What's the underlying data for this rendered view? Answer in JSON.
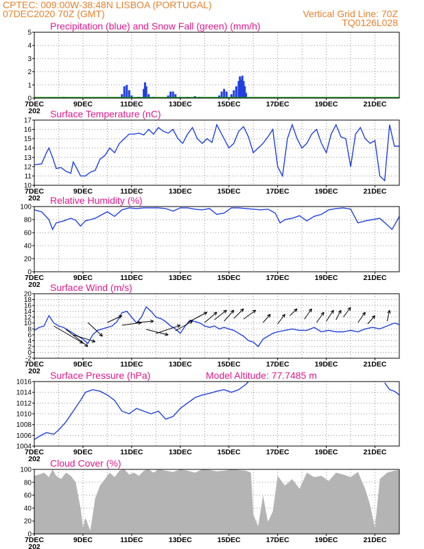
{
  "header": {
    "line1_left": "CPTEC:   009:00W-38:48N  LISBOA (PORTUGAL)",
    "line2_left": "07DEC2020 70Z (GMT)",
    "line2_right": "Vertical Grid Line: 70Z",
    "line3_right": "TQ0126L028"
  },
  "colors": {
    "header": "#e8802a",
    "title": "#e0188a",
    "line": "#1f3fe0",
    "precip": "#1f3fe0",
    "snow": "#1a9a1a",
    "cloud": "#b4b4b4"
  },
  "x_axis": {
    "ticks": [
      "7DEC",
      "9DEC",
      "11DEC",
      "13DEC",
      "15DEC",
      "17DEC",
      "19DEC",
      "21DEC"
    ],
    "clipped_year_label": "202"
  },
  "chart_data": [
    {
      "type": "bar",
      "title": "Precipitation (blue) and Snow Fall (green) (mm/h)",
      "ylim": [
        0,
        5
      ],
      "yticks": [
        "0",
        "1",
        "2",
        "3",
        "4",
        "5"
      ],
      "x_range_days": [
        7,
        22
      ],
      "series": [
        {
          "name": "Precipitation",
          "color": "#1f3fe0",
          "points": [
            [
              7.8,
              0.05
            ],
            [
              8.0,
              0.08
            ],
            [
              8.2,
              0.1
            ],
            [
              8.4,
              0.06
            ],
            [
              9.6,
              0.05
            ],
            [
              10.6,
              0.3
            ],
            [
              10.7,
              0.9
            ],
            [
              10.8,
              1.0
            ],
            [
              10.9,
              0.6
            ],
            [
              11.0,
              0.2
            ],
            [
              11.3,
              0.1
            ],
            [
              11.5,
              0.7
            ],
            [
              11.55,
              1.2
            ],
            [
              11.6,
              0.9
            ],
            [
              11.7,
              0.3
            ],
            [
              11.9,
              0.1
            ],
            [
              12.5,
              0.2
            ],
            [
              12.6,
              0.5
            ],
            [
              12.7,
              0.5
            ],
            [
              12.8,
              0.3
            ],
            [
              13.0,
              0.1
            ],
            [
              13.3,
              0.1
            ],
            [
              13.6,
              0.15
            ],
            [
              13.8,
              0.1
            ],
            [
              14.6,
              0.2
            ],
            [
              14.7,
              0.5
            ],
            [
              14.8,
              0.7
            ],
            [
              14.9,
              0.5
            ],
            [
              15.1,
              0.3
            ],
            [
              15.2,
              0.6
            ],
            [
              15.3,
              0.9
            ],
            [
              15.4,
              1.3
            ],
            [
              15.45,
              1.65
            ],
            [
              15.5,
              1.4
            ],
            [
              15.55,
              1.7
            ],
            [
              15.6,
              1.3
            ],
            [
              15.65,
              0.9
            ],
            [
              15.7,
              0.4
            ],
            [
              18.5,
              0.05
            ],
            [
              19.6,
              0.05
            ],
            [
              20.4,
              0.05
            ]
          ]
        },
        {
          "name": "Snow Fall",
          "color": "#1a9a1a",
          "points": [
            [
              7.0,
              0.04
            ],
            [
              22.0,
              0.04
            ]
          ]
        }
      ]
    },
    {
      "type": "line",
      "title": "Surface Temperature (nC)",
      "ylim": [
        10,
        17
      ],
      "yticks": [
        "10",
        "11",
        "12",
        "13",
        "14",
        "15",
        "16",
        "17"
      ],
      "x": [
        7.0,
        7.3,
        7.5,
        7.6,
        7.75,
        7.9,
        8.1,
        8.3,
        8.5,
        8.6,
        8.75,
        8.9,
        9.1,
        9.3,
        9.5,
        9.7,
        9.9,
        10.1,
        10.3,
        10.5,
        10.7,
        10.9,
        11.1,
        11.3,
        11.5,
        11.7,
        11.9,
        12.1,
        12.3,
        12.5,
        12.7,
        12.9,
        13.1,
        13.3,
        13.5,
        13.7,
        13.9,
        14.1,
        14.3,
        14.5,
        14.6,
        14.8,
        15.0,
        15.2,
        15.4,
        15.6,
        15.8,
        16.0,
        16.2,
        16.4,
        16.6,
        16.8,
        17.0,
        17.2,
        17.4,
        17.6,
        17.8,
        18.0,
        18.2,
        18.4,
        18.6,
        18.8,
        19.0,
        19.2,
        19.4,
        19.6,
        19.8,
        20.0,
        20.2,
        20.4,
        20.6,
        20.8,
        21.0,
        21.2,
        21.4,
        21.6,
        21.8,
        22.0
      ],
      "y": [
        12.2,
        12.3,
        13.5,
        14.0,
        13.0,
        11.8,
        11.9,
        11.5,
        11.3,
        12.5,
        11.8,
        11.0,
        11.0,
        11.4,
        11.6,
        12.8,
        13.2,
        14.0,
        13.5,
        14.5,
        15.0,
        15.5,
        15.5,
        15.6,
        15.4,
        16.0,
        15.5,
        16.2,
        15.8,
        15.6,
        16.0,
        15.0,
        14.5,
        15.5,
        16.2,
        15.0,
        14.5,
        15.0,
        14.6,
        16.5,
        16.0,
        15.0,
        14.0,
        14.5,
        15.8,
        16.3,
        15.2,
        13.5,
        14.0,
        14.5,
        15.2,
        16.0,
        12.0,
        11.0,
        15.0,
        16.5,
        15.0,
        14.0,
        14.5,
        15.5,
        16.0,
        14.5,
        13.5,
        15.5,
        16.5,
        15.2,
        15.0,
        12.0,
        15.5,
        16.2,
        15.0,
        14.5,
        14.8,
        11.0,
        10.5,
        16.5,
        14.2,
        14.2
      ]
    },
    {
      "type": "line",
      "title": "Relative Humidity (%)",
      "ylim": [
        0,
        100
      ],
      "yticks": [
        "0",
        "20",
        "40",
        "60",
        "80",
        "100"
      ],
      "x": [
        7.0,
        7.3,
        7.6,
        7.75,
        7.9,
        8.2,
        8.5,
        8.7,
        8.9,
        9.1,
        9.3,
        9.5,
        9.8,
        10.0,
        10.3,
        10.6,
        10.9,
        11.2,
        11.5,
        11.8,
        12.1,
        12.4,
        12.7,
        13.0,
        13.3,
        13.6,
        13.9,
        14.2,
        14.5,
        14.8,
        15.1,
        15.4,
        15.7,
        16.0,
        16.3,
        16.6,
        16.9,
        17.1,
        17.3,
        17.6,
        17.9,
        18.2,
        18.5,
        18.8,
        19.1,
        19.4,
        19.7,
        20.0,
        20.3,
        20.6,
        20.9,
        21.2,
        21.5,
        21.7,
        21.9,
        22.0
      ],
      "y": [
        95,
        92,
        80,
        65,
        75,
        78,
        82,
        79,
        70,
        78,
        80,
        82,
        88,
        92,
        85,
        95,
        98,
        97,
        98,
        98,
        98,
        97,
        93,
        98,
        98,
        96,
        95,
        97,
        88,
        90,
        98,
        98,
        97,
        96,
        95,
        96,
        90,
        75,
        80,
        82,
        86,
        78,
        85,
        88,
        95,
        97,
        98,
        96,
        75,
        78,
        80,
        82,
        72,
        65,
        78,
        85
      ]
    },
    {
      "type": "line",
      "title": "Surface Wind (m/s)",
      "ylim": [
        -2,
        20
      ],
      "yticks": [
        "-2",
        "0",
        "2",
        "4",
        "6",
        "8",
        "10",
        "12",
        "14",
        "16",
        "18",
        "20"
      ],
      "x": [
        7.0,
        7.2,
        7.4,
        7.6,
        7.8,
        8.0,
        8.2,
        8.4,
        8.6,
        8.8,
        9.0,
        9.2,
        9.4,
        9.6,
        9.8,
        10.0,
        10.2,
        10.4,
        10.6,
        10.8,
        11.0,
        11.2,
        11.4,
        11.6,
        11.8,
        12.0,
        12.2,
        12.4,
        12.6,
        12.8,
        13.0,
        13.2,
        13.4,
        13.6,
        13.8,
        14.0,
        14.2,
        14.4,
        14.6,
        14.8,
        15.0,
        15.2,
        15.4,
        15.6,
        15.8,
        16.0,
        16.2,
        16.4,
        16.6,
        16.8,
        17.0,
        17.3,
        17.6,
        17.9,
        18.2,
        18.5,
        18.8,
        19.1,
        19.4,
        19.7,
        20.0,
        20.3,
        20.6,
        20.9,
        21.2,
        21.5,
        21.8,
        22.0
      ],
      "y": [
        7.5,
        8.5,
        9.0,
        12.5,
        10.0,
        9.0,
        8.5,
        7.5,
        6.5,
        5.5,
        4.5,
        3.0,
        6.0,
        7.5,
        8.0,
        8.5,
        9.0,
        10.5,
        13.5,
        14.0,
        12.0,
        10.0,
        12.0,
        15.5,
        14.0,
        12.0,
        11.5,
        10.5,
        9.0,
        8.0,
        6.5,
        9.0,
        11.0,
        10.5,
        10.0,
        9.0,
        8.5,
        9.0,
        8.0,
        8.5,
        8.0,
        7.5,
        6.5,
        5.5,
        4.0,
        3.5,
        2.0,
        4.5,
        5.5,
        6.5,
        7.0,
        7.5,
        8.0,
        7.5,
        7.5,
        8.5,
        7.0,
        7.5,
        7.0,
        7.0,
        7.5,
        7.0,
        8.0,
        8.5,
        8.0,
        9.0,
        10.0,
        9.5
      ]
    },
    {
      "type": "line",
      "title": "Surface Pressure (hPa)",
      "annotation": "Model Altitude: 77.7485 m",
      "ylim": [
        1004,
        1016
      ],
      "yticks": [
        "1004",
        "1006",
        "1008",
        "1010",
        "1012",
        "1014",
        "1016"
      ],
      "x": [
        7.0,
        7.2,
        7.5,
        7.8,
        8.0,
        8.3,
        8.6,
        8.9,
        9.1,
        9.4,
        9.7,
        10.0,
        10.3,
        10.6,
        10.9,
        11.2,
        11.5,
        11.8,
        12.1,
        12.4,
        12.7,
        13.0,
        13.3,
        13.6,
        13.9,
        14.2,
        14.5,
        14.8,
        15.1,
        15.4,
        15.7,
        15.8
      ],
      "y": [
        1005.2,
        1005.8,
        1006.5,
        1006.2,
        1007.0,
        1008.5,
        1010.5,
        1012.5,
        1014.0,
        1014.5,
        1014.2,
        1013.5,
        1012.5,
        1010.5,
        1010.0,
        1011.0,
        1010.5,
        1010.0,
        1010.5,
        1009.0,
        1009.5,
        1011.0,
        1012.0,
        1013.0,
        1013.5,
        1013.8,
        1014.2,
        1014.5,
        1014.0,
        1014.5,
        1015.5,
        1016.0
      ],
      "x2": [
        21.4,
        21.6,
        21.8,
        22.0
      ],
      "y2": [
        1015.8,
        1014.5,
        1014.2,
        1013.5
      ]
    },
    {
      "type": "area",
      "title": "Cloud Cover (%)",
      "ylim": [
        0,
        100
      ],
      "yticks": [
        "0",
        "20",
        "40",
        "60",
        "80",
        "100"
      ],
      "x": [
        7.0,
        7.2,
        7.4,
        7.6,
        7.75,
        7.9,
        8.1,
        8.3,
        8.5,
        8.7,
        8.9,
        9.0,
        9.1,
        9.3,
        9.5,
        9.7,
        9.9,
        10.1,
        10.3,
        10.5,
        10.7,
        10.9,
        11.1,
        11.3,
        11.5,
        11.7,
        11.9,
        12.1,
        12.4,
        12.7,
        13.0,
        13.3,
        13.6,
        13.9,
        14.2,
        14.5,
        14.8,
        15.1,
        15.4,
        15.7,
        15.9,
        16.0,
        16.2,
        16.4,
        16.6,
        16.8,
        17.0,
        17.3,
        17.6,
        17.9,
        18.2,
        18.5,
        18.8,
        19.1,
        19.4,
        19.7,
        20.0,
        20.3,
        20.6,
        20.8,
        21.0,
        21.2,
        21.5,
        21.8,
        22.0
      ],
      "y": [
        90,
        92,
        95,
        88,
        100,
        90,
        85,
        95,
        90,
        80,
        40,
        10,
        25,
        5,
        55,
        75,
        85,
        95,
        88,
        98,
        100,
        92,
        95,
        90,
        98,
        100,
        95,
        100,
        98,
        96,
        100,
        98,
        95,
        100,
        99,
        97,
        98,
        100,
        99,
        98,
        95,
        30,
        12,
        60,
        18,
        35,
        90,
        75,
        85,
        70,
        95,
        88,
        90,
        82,
        95,
        92,
        88,
        96,
        70,
        45,
        10,
        85,
        95,
        98,
        99
      ]
    }
  ]
}
